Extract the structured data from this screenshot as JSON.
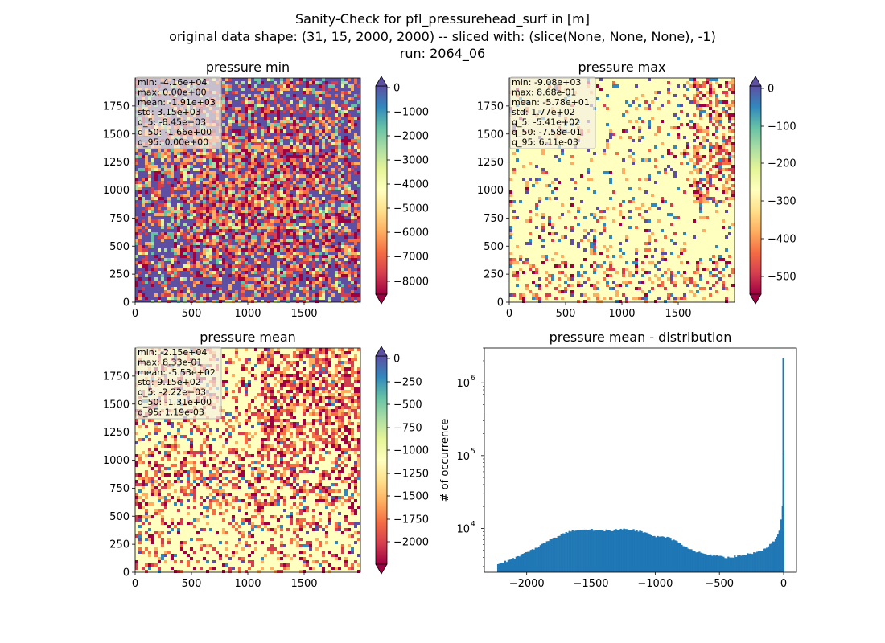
{
  "figure": {
    "title_lines": [
      "Sanity-Check for pfl_pressurehead_surf in [m]",
      "original data shape: (31, 15, 2000, 2000) -- sliced with: (slice(None, None, None), -1)",
      "run: 2064_06"
    ]
  },
  "colors": {
    "spectral": [
      "#9e0142",
      "#d53e4f",
      "#f46d43",
      "#fdae61",
      "#fee08b",
      "#ffffbf",
      "#e6f598",
      "#abdda4",
      "#66c2a5",
      "#3288bd",
      "#5e4fa2"
    ],
    "hist_bar": "#1f77b4",
    "stats_box_bg": "rgba(245,240,225,0.7)"
  },
  "chart_data": [
    {
      "type": "heatmap",
      "title": "pressure min",
      "xticks": [
        "0",
        "500",
        "1000",
        "1500"
      ],
      "yticks": [
        "0",
        "250",
        "500",
        "750",
        "1000",
        "1250",
        "1500",
        "1750"
      ],
      "xlim": [
        0,
        2000
      ],
      "ylim": [
        0,
        2000
      ],
      "colorbar": {
        "vmin": -8700,
        "vmax": 0,
        "ticks": [
          "0",
          "−1000",
          "−2000",
          "−3000",
          "−4000",
          "−5000",
          "−6000",
          "−7000",
          "−8000"
        ],
        "extend_top_color": "#5e4fa2"
      },
      "dominant": "#5e4fa2",
      "stats": [
        "min: -4.16e+04",
        "max: 0.00e+00",
        "mean: -1.91e+03",
        "std: 3.15e+03",
        "q_5: -8.45e+03",
        "q_50: -1.66e+00",
        "q_95: 0.00e+00"
      ]
    },
    {
      "type": "heatmap",
      "title": "pressure max",
      "xticks": [
        "0",
        "500",
        "1000",
        "1500"
      ],
      "yticks": [
        "0",
        "250",
        "500",
        "750",
        "1000",
        "1250",
        "1500",
        "1750"
      ],
      "xlim": [
        0,
        2000
      ],
      "ylim": [
        0,
        2000
      ],
      "colorbar": {
        "vmin": -560,
        "vmax": 0,
        "ticks": [
          "0",
          "−100",
          "−200",
          "−300",
          "−400",
          "−500"
        ],
        "extend_top_color": "#5e4fa2"
      },
      "dominant": "#ffffbf",
      "stats": [
        "min: -9.08e+03",
        "max: 8.68e-01",
        "mean: -5.78e+01",
        "std: 1.77e+02",
        "q_5: -5.41e+02",
        "q_50: -7.58e-01",
        "q_95: 6.11e-03"
      ]
    },
    {
      "type": "heatmap",
      "title": "pressure mean",
      "xticks": [
        "0",
        "500",
        "1000",
        "1500"
      ],
      "yticks": [
        "0",
        "250",
        "500",
        "750",
        "1000",
        "1250",
        "1500",
        "1750"
      ],
      "xlim": [
        0,
        2000
      ],
      "ylim": [
        0,
        2000
      ],
      "colorbar": {
        "vmin": -2250,
        "vmax": 0,
        "ticks": [
          "0",
          "−250",
          "−500",
          "−750",
          "−1000",
          "−1250",
          "−1500",
          "−1750",
          "−2000"
        ],
        "extend_top_color": "#5e4fa2"
      },
      "dominant": "#ffffbf",
      "stats": [
        "min: -2.15e+04",
        "max: 8.33e-01",
        "mean: -5.53e+02",
        "std: 9.15e+02",
        "q_5: -2.22e+03",
        "q_50: -1.31e+00",
        "q_95: 1.19e-03"
      ]
    },
    {
      "type": "bar",
      "title": "pressure mean - distribution",
      "ylabel": "# of occurrence",
      "xlabel": "",
      "yscale": "log",
      "xlim": [
        -2330,
        100
      ],
      "ylim": [
        2500,
        3000000
      ],
      "xticks": [
        {
          "v": -2000,
          "label": "−2000"
        },
        {
          "v": -1500,
          "label": "−1500"
        },
        {
          "v": -1000,
          "label": "−1000"
        },
        {
          "v": -500,
          "label": "−500"
        },
        {
          "v": 0,
          "label": "0"
        }
      ],
      "yticks": [
        {
          "v": 10000,
          "base": "10",
          "exp": "4"
        },
        {
          "v": 100000,
          "base": "10",
          "exp": "5"
        },
        {
          "v": 1000000,
          "base": "10",
          "exp": "6"
        }
      ],
      "bin_width": 11.2,
      "x": [
        -2230,
        -2200,
        -2150,
        -2100,
        -2050,
        -2000,
        -1950,
        -1900,
        -1850,
        -1800,
        -1750,
        -1700,
        -1650,
        -1600,
        -1550,
        -1500,
        -1450,
        -1400,
        -1350,
        -1300,
        -1250,
        -1200,
        -1150,
        -1100,
        -1050,
        -1000,
        -950,
        -900,
        -850,
        -800,
        -750,
        -700,
        -650,
        -600,
        -550,
        -500,
        -450,
        -400,
        -350,
        -300,
        -250,
        -200,
        -150,
        -100,
        -60,
        -40,
        -25,
        -15,
        -8,
        -3,
        0
      ],
      "values": [
        3300,
        3400,
        3600,
        3900,
        4300,
        4700,
        5200,
        5800,
        6500,
        7300,
        8100,
        8800,
        9300,
        9600,
        9700,
        9600,
        9500,
        9400,
        9400,
        9600,
        9700,
        9700,
        9400,
        8800,
        8200,
        7800,
        7700,
        7400,
        6700,
        6000,
        5400,
        4900,
        4600,
        4400,
        4300,
        4100,
        4000,
        4100,
        4200,
        4400,
        4600,
        4900,
        5300,
        6200,
        7500,
        9500,
        13000,
        20000,
        40000,
        120000,
        2200000
      ]
    }
  ]
}
